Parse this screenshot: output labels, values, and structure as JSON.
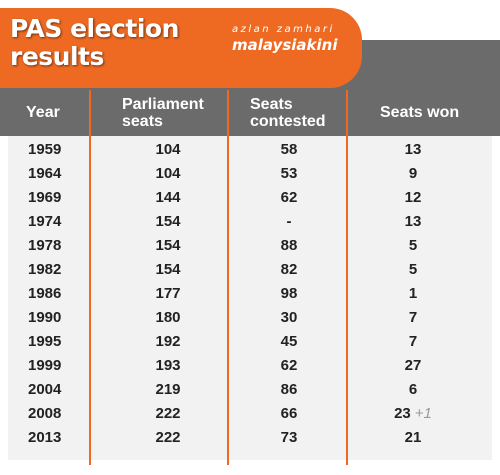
{
  "header": {
    "title_line1": "PAS election",
    "title_line2": "results",
    "author": "azlan zamhari",
    "brand": "malaysiakini",
    "accent_color": "#ee6a22"
  },
  "chart_data": {
    "type": "table",
    "columns": [
      "Year",
      "Parliament seats",
      "Seats contested",
      "Seats won"
    ],
    "column_headers": {
      "year": "Year",
      "parliament_line1": "Parliament",
      "parliament_line2": "seats",
      "contested_line1": "Seats",
      "contested_line2": "contested",
      "won": "Seats won"
    },
    "rows": [
      {
        "year": "1959",
        "parliament": "104",
        "contested": "58",
        "won": "13",
        "extra": ""
      },
      {
        "year": "1964",
        "parliament": "104",
        "contested": "53",
        "won": "9",
        "extra": ""
      },
      {
        "year": "1969",
        "parliament": "144",
        "contested": "62",
        "won": "12",
        "extra": ""
      },
      {
        "year": "1974",
        "parliament": "154",
        "contested": "-",
        "won": "13",
        "extra": ""
      },
      {
        "year": "1978",
        "parliament": "154",
        "contested": "88",
        "won": "5",
        "extra": ""
      },
      {
        "year": "1982",
        "parliament": "154",
        "contested": "82",
        "won": "5",
        "extra": ""
      },
      {
        "year": "1986",
        "parliament": "177",
        "contested": "98",
        "won": "1",
        "extra": ""
      },
      {
        "year": "1990",
        "parliament": "180",
        "contested": "30",
        "won": "7",
        "extra": ""
      },
      {
        "year": "1995",
        "parliament": "192",
        "contested": "45",
        "won": "7",
        "extra": ""
      },
      {
        "year": "1999",
        "parliament": "193",
        "contested": "62",
        "won": "27",
        "extra": ""
      },
      {
        "year": "2004",
        "parliament": "219",
        "contested": "86",
        "won": "6",
        "extra": ""
      },
      {
        "year": "2008",
        "parliament": "222",
        "contested": "66",
        "won": "23",
        "extra": "+1"
      },
      {
        "year": "2013",
        "parliament": "222",
        "contested": "73",
        "won": "21",
        "extra": ""
      }
    ]
  }
}
